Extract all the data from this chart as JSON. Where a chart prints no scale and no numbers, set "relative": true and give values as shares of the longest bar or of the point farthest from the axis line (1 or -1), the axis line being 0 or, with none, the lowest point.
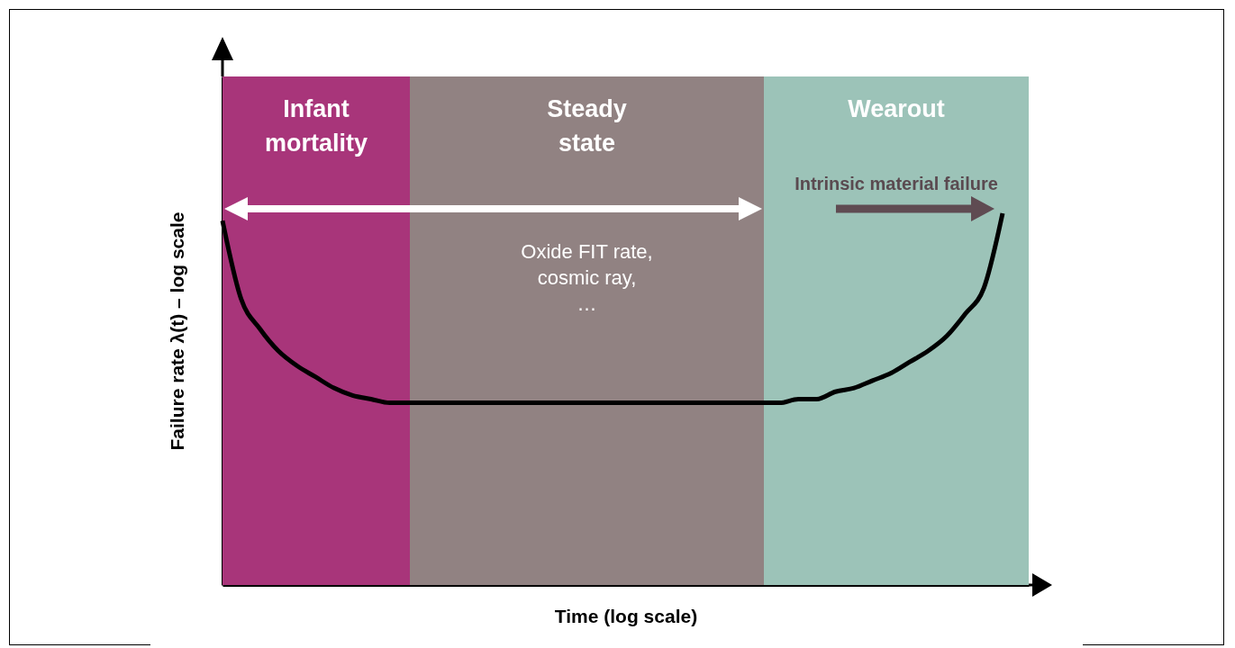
{
  "chart_data": {
    "type": "line",
    "relative": true,
    "xlabel": "Time (log scale)",
    "ylabel": "Failure  rate λ(t) – log scale",
    "categories": [
      null,
      null,
      null,
      null,
      null,
      null,
      null,
      null,
      null,
      null,
      null,
      null,
      null,
      null,
      null,
      null,
      null,
      null,
      null,
      null,
      null,
      null,
      null,
      null,
      null,
      null,
      null,
      null,
      null,
      null,
      null,
      null,
      null,
      null,
      null,
      null,
      null,
      null,
      null,
      null,
      null,
      null,
      null
    ],
    "series": [
      {
        "color": "#000000",
        "values": [
          0.98,
          0.77,
          0.69,
          0.63,
          0.59,
          0.56,
          0.53,
          0.51,
          0.5,
          0.49,
          0.49,
          0.49,
          0.49,
          0.49,
          0.49,
          0.49,
          0.49,
          0.49,
          0.49,
          0.49,
          0.49,
          0.49,
          0.49,
          0.49,
          0.49,
          0.49,
          0.49,
          0.49,
          0.49,
          0.49,
          0.49,
          0.5,
          0.5,
          0.52,
          0.53,
          0.55,
          0.57,
          0.6,
          0.63,
          0.67,
          0.73,
          0.8,
          1.0
        ]
      }
    ],
    "annotations": [
      "Infant mortality",
      "Steady state",
      "Wearout",
      "Oxide FIT rate,\ncosmic ray,\n…",
      "Intrinsic material failure"
    ]
  }
}
